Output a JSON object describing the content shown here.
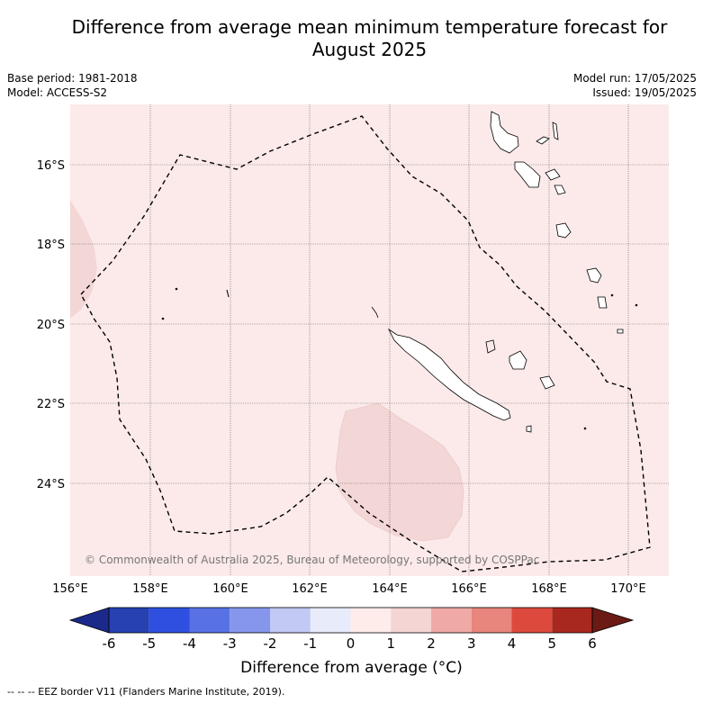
{
  "title_line1": "Difference from average mean minimum temperature forecast for",
  "title_line2": "August 2025",
  "base_period": "Base period: 1981-2018",
  "model": "Model: ACCESS-S2",
  "model_run": "Model run: 17/05/2025",
  "issued": "Issued: 19/05/2025",
  "copyright": "© Commonwealth of Australia 2025, Bureau of Meteorology, supported by COSPPac",
  "lat_labels": [
    "16°S",
    "18°S",
    "20°S",
    "22°S",
    "24°S"
  ],
  "lon_labels": [
    "156°E",
    "158°E",
    "160°E",
    "162°E",
    "164°E",
    "166°E",
    "168°E",
    "170°E"
  ],
  "colorbar": {
    "ticks": [
      "-6",
      "-5",
      "-4",
      "-3",
      "-2",
      "-1",
      "0",
      "1",
      "2",
      "3",
      "4",
      "5",
      "6"
    ],
    "colors": [
      "#1b2a8a",
      "#2541b2",
      "#2e4fe0",
      "#5872e6",
      "#8696ec",
      "#c1c9f4",
      "#e8ebfa",
      "#fdecea",
      "#f5d4d4",
      "#efaaa5",
      "#e8857c",
      "#dd4a3d",
      "#a82820",
      "#6b1a14"
    ],
    "label": "Difference from average (°C)"
  },
  "background_anomaly_color": "#fbeae9",
  "warm_anomaly_color": "#f3d6d6",
  "legend_footnote": "-- -- -- EEZ border V11 (Flanders Marine Institute, 2019)."
}
